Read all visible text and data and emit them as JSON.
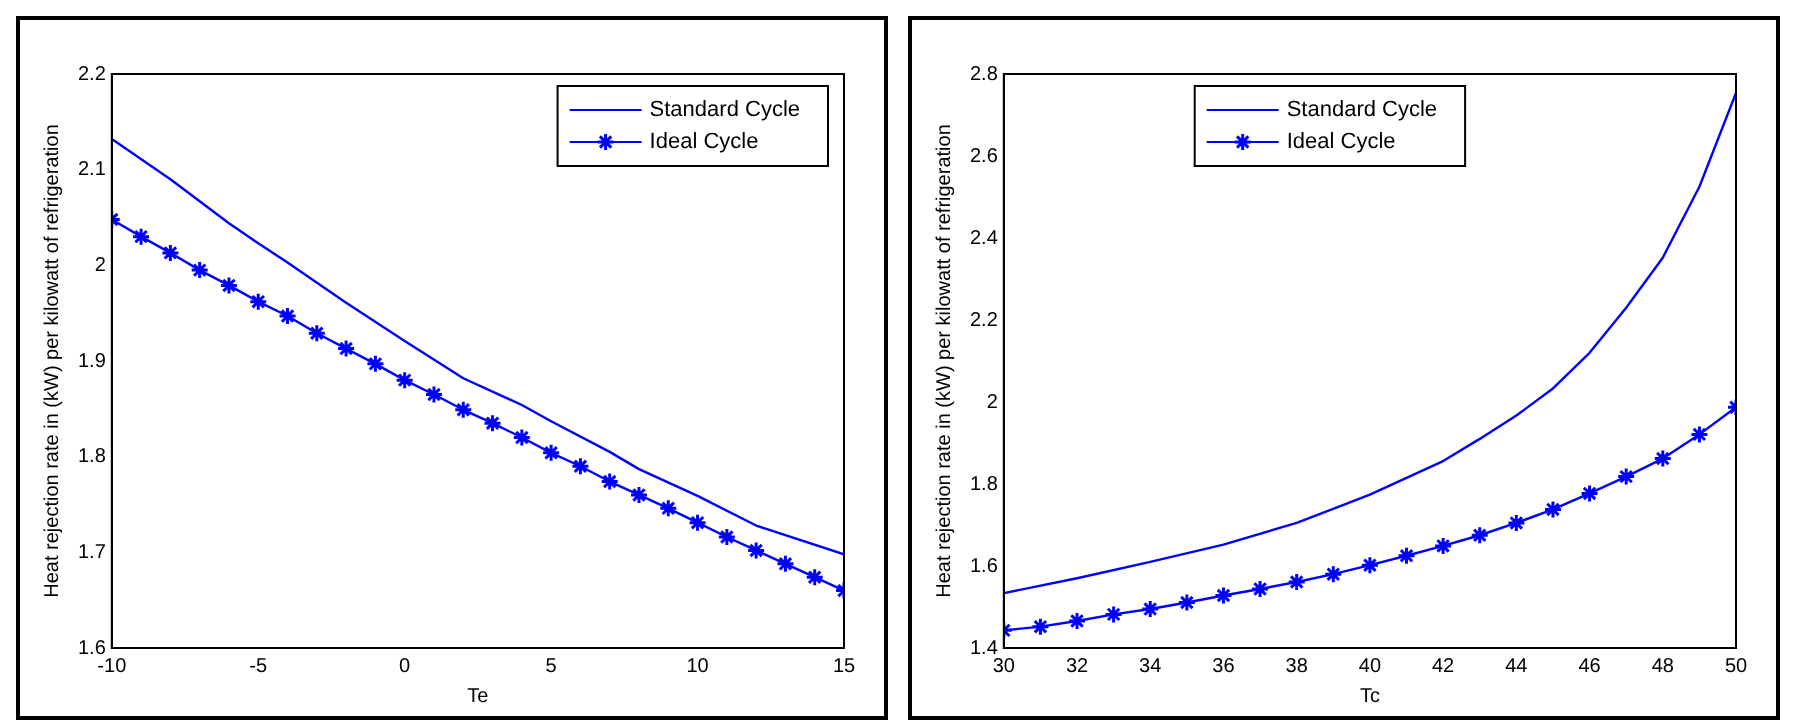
{
  "chart_data": [
    {
      "type": "line",
      "xlabel": "Te",
      "ylabel": "Heat rejection rate in (kW) per kilowatt of refrigeration",
      "xlim": [
        -10,
        15
      ],
      "xticks": [
        -10,
        -5,
        0,
        5,
        10,
        15
      ],
      "ylim": [
        1.6,
        2.2
      ],
      "yticks": [
        1.6,
        1.7,
        1.8,
        1.9,
        2,
        2.1,
        2.2
      ],
      "grid": false,
      "legend": "top right",
      "series": [
        {
          "name": "Standard Cycle",
          "color": "#0000ff",
          "marker": "none",
          "x": [
            -10,
            -8,
            -6,
            -5,
            -4,
            -2,
            0,
            2,
            4,
            5,
            7,
            8,
            10,
            12,
            15
          ],
          "values": [
            2.132,
            2.09,
            2.044,
            2.023,
            2.003,
            1.961,
            1.921,
            1.882,
            1.854,
            1.837,
            1.805,
            1.787,
            1.759,
            1.728,
            1.698
          ]
        },
        {
          "name": "Ideal Cycle",
          "color": "#0000ff",
          "marker": "cross",
          "x": [
            -10,
            -9,
            -8,
            -7,
            -6,
            -5,
            -4,
            -3,
            -2,
            -1,
            0,
            1,
            2,
            3,
            4,
            5,
            6,
            7,
            8,
            9,
            10,
            11,
            12,
            13,
            14,
            15
          ],
          "values": [
            2.048,
            2.03,
            2.013,
            1.995,
            1.979,
            1.962,
            1.947,
            1.929,
            1.913,
            1.897,
            1.88,
            1.865,
            1.849,
            1.835,
            1.82,
            1.804,
            1.79,
            1.774,
            1.76,
            1.746,
            1.731,
            1.716,
            1.702,
            1.688,
            1.674,
            1.66
          ]
        }
      ]
    },
    {
      "type": "line",
      "xlabel": "Tc",
      "ylabel": "Heat rejection rate in (kW) per kilowatt of refrigeration",
      "xlim": [
        30,
        50
      ],
      "xticks": [
        30,
        32,
        34,
        36,
        38,
        40,
        42,
        44,
        46,
        48,
        50
      ],
      "ylim": [
        1.4,
        2.8
      ],
      "yticks": [
        1.4,
        1.6,
        1.8,
        2,
        2.2,
        2.4,
        2.6,
        2.8
      ],
      "grid": false,
      "legend": "top",
      "series": [
        {
          "name": "Standard Cycle",
          "color": "#0000ff",
          "marker": "none",
          "x": [
            30,
            32,
            34,
            36,
            38,
            40,
            42,
            43,
            44,
            45,
            46,
            47,
            48,
            49,
            50
          ],
          "values": [
            1.534,
            1.57,
            1.61,
            1.652,
            1.705,
            1.774,
            1.856,
            1.91,
            1.967,
            2.033,
            2.12,
            2.23,
            2.352,
            2.525,
            2.754
          ]
        },
        {
          "name": "Ideal Cycle",
          "color": "#0000ff",
          "marker": "cross",
          "x": [
            30,
            31,
            32,
            33,
            34,
            35,
            36,
            37,
            38,
            39,
            40,
            41,
            42,
            43,
            44,
            45,
            46,
            47,
            48,
            49,
            50
          ],
          "values": [
            1.443,
            1.452,
            1.466,
            1.482,
            1.495,
            1.511,
            1.528,
            1.544,
            1.561,
            1.58,
            1.602,
            1.625,
            1.649,
            1.675,
            1.705,
            1.738,
            1.777,
            1.818,
            1.862,
            1.921,
            1.987
          ]
        }
      ]
    }
  ]
}
